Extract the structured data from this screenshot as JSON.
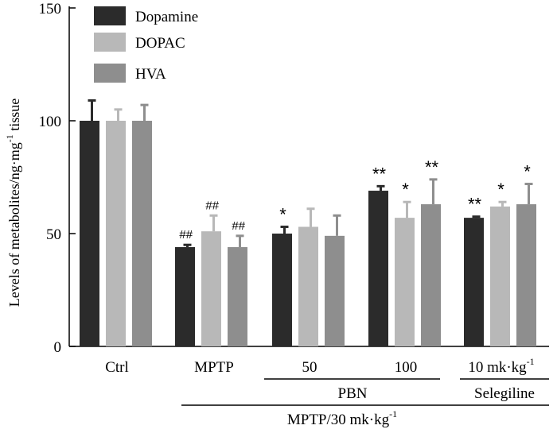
{
  "chart_data": {
    "type": "bar",
    "ylabel": "Levels of metabolites/ng·mg",
    "ylabel_sup": "-1",
    "ylabel_suffix": " tissue",
    "ylim": [
      0,
      150
    ],
    "yticks": [
      0,
      50,
      100,
      150
    ],
    "grid": false,
    "legend_position": "top-left",
    "colors": {
      "Dopamine": "#2b2b2b",
      "DOPAC": "#b8b8b8",
      "HVA": "#8e8e8e"
    },
    "series": [
      {
        "name": "Dopamine",
        "values": [
          100,
          44,
          50,
          69,
          57
        ],
        "errors": [
          9,
          1,
          3,
          2,
          0.5
        ],
        "annotations": [
          "",
          "##",
          "*",
          "**",
          "**"
        ]
      },
      {
        "name": "DOPAC",
        "values": [
          100,
          51,
          53,
          57,
          62
        ],
        "errors": [
          5,
          7,
          8,
          7,
          2
        ],
        "annotations": [
          "",
          "##",
          "",
          "*",
          "*"
        ]
      },
      {
        "name": "HVA",
        "values": [
          100,
          44,
          49,
          63,
          63
        ],
        "errors": [
          7,
          5,
          9,
          11,
          9
        ],
        "annotations": [
          "",
          "##",
          "",
          "**",
          "*"
        ]
      }
    ],
    "categories": [
      "Ctrl",
      "MPTP",
      "50",
      "100",
      "10 mk·kg"
    ],
    "category_sups": [
      "",
      "",
      "",
      "",
      "-1"
    ],
    "group_labels": {
      "pbn": "PBN",
      "selegiline": "Selegiline",
      "mptp": "MPTP/30 mk·kg",
      "mptp_sup": "-1"
    }
  }
}
